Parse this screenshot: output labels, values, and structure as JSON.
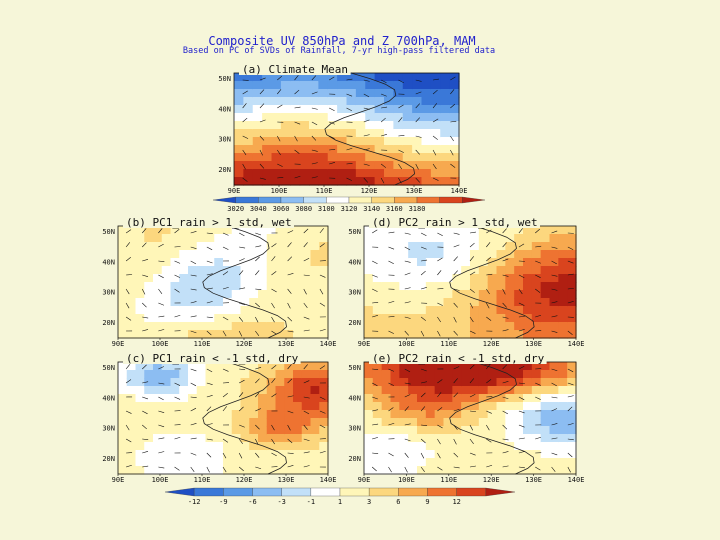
{
  "title": "Composite UV 850hPa and Z 700hPa, MAM",
  "subtitle": "Based on PC of SVDs of Rainfall, 7-yr high-pass filtered data",
  "chart_data": {
    "type": "heatmap",
    "panels": [
      {
        "id": "a",
        "label": "(a) Climate Mean",
        "lon": [
          90,
          140
        ],
        "lat": [
          15,
          52
        ],
        "xticks": [
          "90E",
          "100E",
          "110E",
          "120E",
          "130E",
          "140E"
        ],
        "yticks": [
          "20N",
          "30N",
          "40N",
          "50N"
        ]
      },
      {
        "id": "b",
        "label": "(b) PC1_rain > 1_std, wet",
        "lon": [
          90,
          140
        ],
        "lat": [
          15,
          52
        ],
        "xticks": [
          "90E",
          "100E",
          "110E",
          "120E",
          "130E",
          "140E"
        ],
        "yticks": [
          "20N",
          "30N",
          "40N",
          "50N"
        ]
      },
      {
        "id": "d",
        "label": "(d) PC2_rain > 1_std, wet",
        "lon": [
          90,
          140
        ],
        "lat": [
          15,
          52
        ],
        "xticks": [
          "90E",
          "100E",
          "110E",
          "120E",
          "130E",
          "140E"
        ],
        "yticks": [
          "20N",
          "30N",
          "40N",
          "50N"
        ]
      },
      {
        "id": "c",
        "label": "(c) PC1_rain < -1_std, dry",
        "lon": [
          90,
          140
        ],
        "lat": [
          15,
          52
        ],
        "xticks": [
          "90E",
          "100E",
          "110E",
          "120E",
          "130E",
          "140E"
        ],
        "yticks": [
          "20N",
          "30N",
          "40N",
          "50N"
        ]
      },
      {
        "id": "e",
        "label": "(e) PC2_rain < -1_std, dry",
        "lon": [
          90,
          140
        ],
        "lat": [
          15,
          52
        ],
        "xticks": [
          "90E",
          "100E",
          "110E",
          "120E",
          "130E",
          "140E"
        ],
        "yticks": [
          "20N",
          "30N",
          "40N",
          "50N"
        ]
      }
    ],
    "climate_colorbar": {
      "labels": [
        "3020",
        "3040",
        "3060",
        "3080",
        "3100",
        "3120",
        "3140",
        "3160",
        "3180"
      ]
    },
    "anomaly_colorbar": {
      "labels": [
        "-12",
        "-9",
        "-6",
        "-3",
        "-1",
        "1",
        "3",
        "6",
        "9",
        "12"
      ]
    },
    "colors": [
      "#1f4fc4",
      "#3a78d8",
      "#5b9ae6",
      "#8cbdf2",
      "#c2e0f8",
      "#ffffff",
      "#fff6b8",
      "#fcd77e",
      "#f7a94f",
      "#ee7331",
      "#d9441e",
      "#b01f12"
    ]
  }
}
